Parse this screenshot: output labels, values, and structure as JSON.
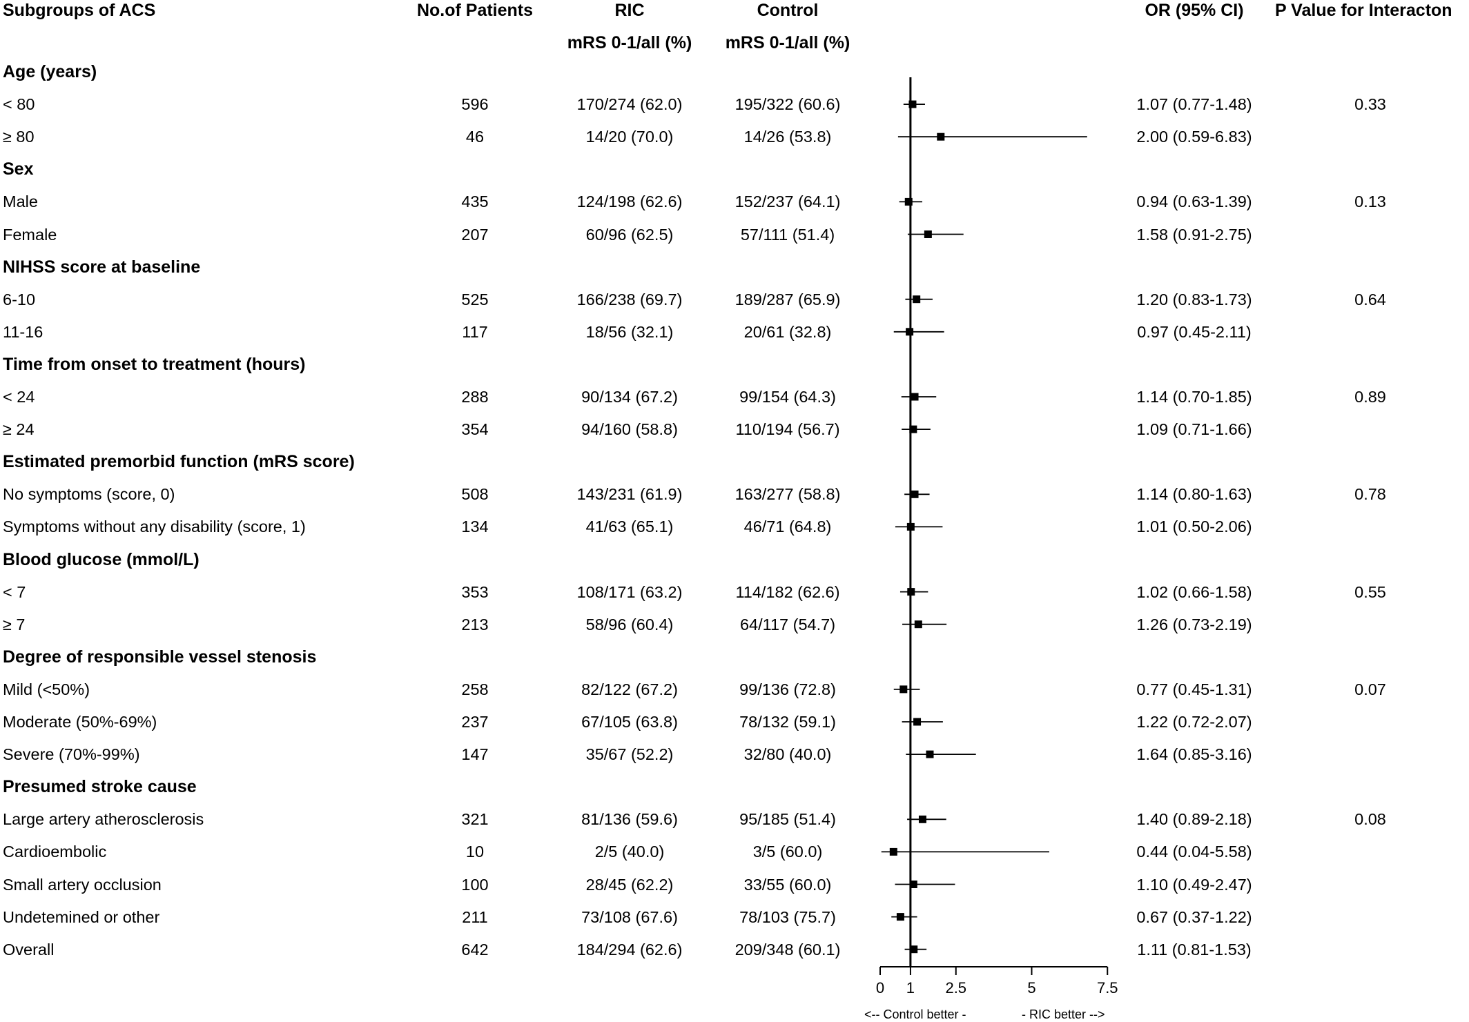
{
  "headers": {
    "subgroup": "Subgroups of ACS",
    "patients": "No.of Patients",
    "ric": "RIC",
    "control": "Control",
    "ric_sub": "mRS 0-1/all (%)",
    "control_sub": "mRS 0-1/all (%)",
    "or": "OR (95% CI)",
    "p": "P Value for Interacton"
  },
  "rows": [
    {
      "type": "group",
      "label": "Age (years)"
    },
    {
      "type": "data",
      "label": "< 80",
      "n": "596",
      "ric": "170/274 (62.0)",
      "control": "195/322 (60.6)",
      "or_text": "1.07 (0.77-1.48)",
      "p": "0.33"
    },
    {
      "type": "data",
      "label": "≥ 80",
      "n": "46",
      "ric": "14/20 (70.0)",
      "control": "14/26 (53.8)",
      "or_text": "2.00 (0.59-6.83)",
      "p": ""
    },
    {
      "type": "group",
      "label": "Sex"
    },
    {
      "type": "data",
      "label": "Male",
      "n": "435",
      "ric": "124/198 (62.6)",
      "control": "152/237 (64.1)",
      "or_text": "0.94 (0.63-1.39)",
      "p": "0.13"
    },
    {
      "type": "data",
      "label": "Female",
      "n": "207",
      "ric": "60/96 (62.5)",
      "control": "57/111 (51.4)",
      "or_text": "1.58 (0.91-2.75)",
      "p": ""
    },
    {
      "type": "group",
      "label": "NIHSS score at baseline"
    },
    {
      "type": "data",
      "label": "6-10",
      "n": "525",
      "ric": "166/238 (69.7)",
      "control": "189/287 (65.9)",
      "or_text": "1.20 (0.83-1.73)",
      "p": "0.64"
    },
    {
      "type": "data",
      "label": "11-16",
      "n": "117",
      "ric": "18/56 (32.1)",
      "control": "20/61 (32.8)",
      "or_text": "0.97 (0.45-2.11)",
      "p": ""
    },
    {
      "type": "group",
      "label": "Time from onset to treatment (hours)"
    },
    {
      "type": "data",
      "label": "< 24",
      "n": "288",
      "ric": "90/134 (67.2)",
      "control": "99/154 (64.3)",
      "or_text": "1.14 (0.70-1.85)",
      "p": "0.89"
    },
    {
      "type": "data",
      "label": "≥ 24",
      "n": "354",
      "ric": "94/160 (58.8)",
      "control": "110/194 (56.7)",
      "or_text": "1.09 (0.71-1.66)",
      "p": ""
    },
    {
      "type": "group",
      "label": "Estimated premorbid function (mRS score)"
    },
    {
      "type": "data",
      "label": "No symptoms (score, 0)",
      "n": "508",
      "ric": "143/231 (61.9)",
      "control": "163/277 (58.8)",
      "or_text": "1.14 (0.80-1.63)",
      "p": "0.78"
    },
    {
      "type": "data",
      "label": "Symptoms without any disability (score, 1)",
      "n": "134",
      "ric": "41/63 (65.1)",
      "control": "46/71 (64.8)",
      "or_text": "1.01 (0.50-2.06)",
      "p": ""
    },
    {
      "type": "group",
      "label": "Blood glucose (mmol/L)"
    },
    {
      "type": "data",
      "label": "< 7",
      "n": "353",
      "ric": "108/171 (63.2)",
      "control": "114/182 (62.6)",
      "or_text": "1.02 (0.66-1.58)",
      "p": "0.55"
    },
    {
      "type": "data",
      "label": "≥ 7",
      "n": "213",
      "ric": "58/96 (60.4)",
      "control": "64/117 (54.7)",
      "or_text": "1.26 (0.73-2.19)",
      "p": ""
    },
    {
      "type": "group",
      "label": "Degree of responsible vessel stenosis"
    },
    {
      "type": "data",
      "label": "Mild (<50%)",
      "n": "258",
      "ric": "82/122 (67.2)",
      "control": "99/136 (72.8)",
      "or_text": "0.77 (0.45-1.31)",
      "p": "0.07"
    },
    {
      "type": "data",
      "label": "Moderate (50%-69%)",
      "n": "237",
      "ric": "67/105 (63.8)",
      "control": "78/132 (59.1)",
      "or_text": "1.22 (0.72-2.07)",
      "p": ""
    },
    {
      "type": "data",
      "label": "Severe (70%-99%)",
      "n": "147",
      "ric": "35/67 (52.2)",
      "control": "32/80 (40.0)",
      "or_text": "1.64 (0.85-3.16)",
      "p": ""
    },
    {
      "type": "group",
      "label": "Presumed stroke cause"
    },
    {
      "type": "data",
      "label": "Large artery atherosclerosis",
      "n": "321",
      "ric": "81/136 (59.6)",
      "control": "95/185 (51.4)",
      "or_text": "1.40 (0.89-2.18)",
      "p": "0.08"
    },
    {
      "type": "data",
      "label": "Cardioembolic",
      "n": "10",
      "ric": "2/5 (40.0)",
      "control": "3/5 (60.0)",
      "or_text": "0.44 (0.04-5.58)",
      "p": ""
    },
    {
      "type": "data",
      "label": "Small artery occlusion",
      "n": "100",
      "ric": "28/45 (62.2)",
      "control": "33/55 (60.0)",
      "or_text": "1.10 (0.49-2.47)",
      "p": ""
    },
    {
      "type": "data",
      "label": "Undetemined or other",
      "n": "211",
      "ric": "73/108 (67.6)",
      "control": "78/103 (75.7)",
      "or_text": "0.67 (0.37-1.22)",
      "p": ""
    },
    {
      "type": "data",
      "label": "Overall",
      "n": "642",
      "ric": "184/294 (62.6)",
      "control": "209/348 (60.1)",
      "or_text": "1.11 (0.81-1.53)",
      "p": ""
    }
  ],
  "chart_data": {
    "type": "forest",
    "xlim": [
      0,
      7.5
    ],
    "ticks": [
      0,
      1,
      2.5,
      5,
      7.5
    ],
    "tick_labels": [
      "0",
      "1",
      "2.5",
      "5",
      "7.5"
    ],
    "reference_line": 1,
    "left_label": "<-- Control better -",
    "right_label": "- RIC better -->",
    "points": [
      {
        "label": "< 80",
        "or": 1.07,
        "lo": 0.77,
        "hi": 1.48
      },
      {
        "label": "≥ 80",
        "or": 2.0,
        "lo": 0.59,
        "hi": 6.83
      },
      {
        "label": "Male",
        "or": 0.94,
        "lo": 0.63,
        "hi": 1.39
      },
      {
        "label": "Female",
        "or": 1.58,
        "lo": 0.91,
        "hi": 2.75
      },
      {
        "label": "6-10",
        "or": 1.2,
        "lo": 0.83,
        "hi": 1.73
      },
      {
        "label": "11-16",
        "or": 0.97,
        "lo": 0.45,
        "hi": 2.11
      },
      {
        "label": "< 24",
        "or": 1.14,
        "lo": 0.7,
        "hi": 1.85
      },
      {
        "label": "≥ 24",
        "or": 1.09,
        "lo": 0.71,
        "hi": 1.66
      },
      {
        "label": "No symptoms (score, 0)",
        "or": 1.14,
        "lo": 0.8,
        "hi": 1.63
      },
      {
        "label": "Symptoms without any disability (score, 1)",
        "or": 1.01,
        "lo": 0.5,
        "hi": 2.06
      },
      {
        "label": "< 7",
        "or": 1.02,
        "lo": 0.66,
        "hi": 1.58
      },
      {
        "label": "≥ 7",
        "or": 1.26,
        "lo": 0.73,
        "hi": 2.19
      },
      {
        "label": "Mild (<50%)",
        "or": 0.77,
        "lo": 0.45,
        "hi": 1.31
      },
      {
        "label": "Moderate (50%-69%)",
        "or": 1.22,
        "lo": 0.72,
        "hi": 2.07
      },
      {
        "label": "Severe (70%-99%)",
        "or": 1.64,
        "lo": 0.85,
        "hi": 3.16
      },
      {
        "label": "Large artery atherosclerosis",
        "or": 1.4,
        "lo": 0.89,
        "hi": 2.18
      },
      {
        "label": "Cardioembolic",
        "or": 0.44,
        "lo": 0.04,
        "hi": 5.58
      },
      {
        "label": "Small artery occlusion",
        "or": 1.1,
        "lo": 0.49,
        "hi": 2.47
      },
      {
        "label": "Undetemined or other",
        "or": 0.67,
        "lo": 0.37,
        "hi": 1.22
      },
      {
        "label": "Overall",
        "or": 1.11,
        "lo": 0.81,
        "hi": 1.53
      }
    ]
  }
}
